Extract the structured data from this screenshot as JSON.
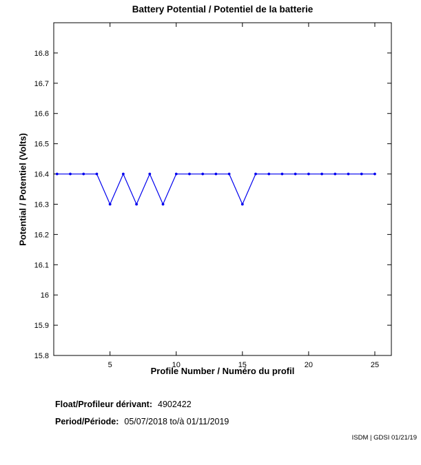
{
  "chart_data": {
    "type": "line",
    "title": "Battery Potential / Potentiel de la batterie",
    "xlabel": "Profile Number / Numéro du profil",
    "ylabel": "Potential / Potentiel (Volts)",
    "x": [
      1,
      2,
      3,
      4,
      5,
      6,
      7,
      8,
      9,
      10,
      11,
      12,
      13,
      14,
      15,
      16,
      17,
      18,
      19,
      20,
      21,
      22,
      23,
      24,
      25
    ],
    "y": [
      16.4,
      16.4,
      16.4,
      16.4,
      16.3,
      16.4,
      16.3,
      16.4,
      16.3,
      16.4,
      16.4,
      16.4,
      16.4,
      16.4,
      16.3,
      16.4,
      16.4,
      16.4,
      16.4,
      16.4,
      16.4,
      16.4,
      16.4,
      16.4,
      16.4
    ],
    "xlim": [
      0.75,
      26.25
    ],
    "ylim": [
      15.8,
      16.9
    ],
    "xticks": [
      5,
      10,
      15,
      20,
      25
    ],
    "xtick_labels": [
      "5",
      "10",
      "15",
      "20",
      "25"
    ],
    "yticks": [
      15.8,
      15.9,
      16.0,
      16.1,
      16.2,
      16.3,
      16.4,
      16.5,
      16.6,
      16.7,
      16.8
    ],
    "ytick_labels": [
      "15.8",
      "15.9",
      "16",
      "16.1",
      "16.2",
      "16.3",
      "16.4",
      "16.5",
      "16.6",
      "16.7",
      "16.8"
    ],
    "line_color": "#0000ee",
    "marker": "dot",
    "grid": false,
    "legend_position": "none"
  },
  "footer": {
    "float_label": "Float/Profileur dérivant:",
    "float_value": "4902422",
    "period_label": "Period/Période:",
    "period_value": "05/07/2018  to/à  01/11/2019",
    "credit": "ISDM | GDSI 01/21/19"
  }
}
